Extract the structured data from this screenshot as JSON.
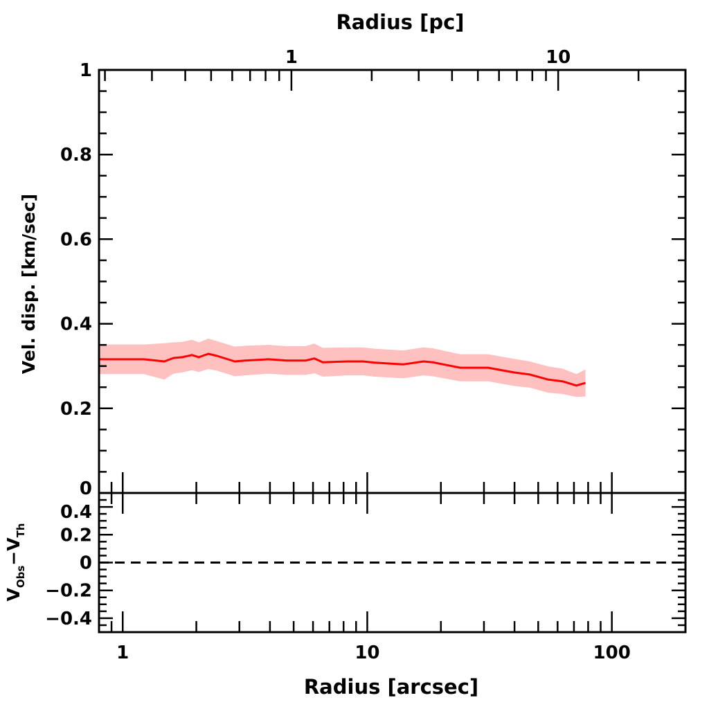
{
  "chart_data": [
    {
      "type": "line",
      "panel": "main",
      "xlabel": "Radius [arcsec]",
      "ylabel": "Vel. disp. [km/sec]",
      "top_xlabel": "Radius [pc]",
      "xscale": "log",
      "xlim": [
        0.8,
        200
      ],
      "ylim": [
        0,
        1
      ],
      "top_xlim": [
        0.19,
        30
      ],
      "top_xticks": [
        1,
        10
      ],
      "top_xtick_labels": [
        "1",
        "10"
      ],
      "yticks": [
        0,
        0.2,
        0.4,
        0.6,
        0.8,
        1
      ],
      "ytick_labels": [
        "0",
        "0.2",
        "0.4",
        "0.6",
        "0.8",
        "1"
      ],
      "grid": false,
      "line_color": "#ff0000",
      "band_color": "#ffc0c0",
      "x": [
        0.8,
        1.22,
        1.48,
        1.61,
        1.75,
        1.92,
        2.05,
        2.24,
        2.43,
        2.87,
        3.16,
        3.95,
        4.68,
        5.59,
        6.08,
        6.58,
        8.27,
        9.61,
        10.7,
        14.0,
        17.0,
        18.5,
        24.0,
        31.2,
        39.8,
        46.2,
        55.1,
        62.8,
        71.6,
        78.0
      ],
      "y": [
        0.316,
        0.316,
        0.311,
        0.319,
        0.321,
        0.326,
        0.321,
        0.329,
        0.324,
        0.311,
        0.313,
        0.316,
        0.313,
        0.313,
        0.318,
        0.309,
        0.311,
        0.311,
        0.308,
        0.304,
        0.311,
        0.309,
        0.296,
        0.296,
        0.285,
        0.28,
        0.268,
        0.264,
        0.254,
        0.26
      ],
      "y_err": [
        0.035,
        0.035,
        0.043,
        0.037,
        0.036,
        0.036,
        0.035,
        0.036,
        0.035,
        0.035,
        0.035,
        0.034,
        0.034,
        0.034,
        0.035,
        0.034,
        0.033,
        0.033,
        0.033,
        0.033,
        0.033,
        0.033,
        0.032,
        0.032,
        0.032,
        0.031,
        0.031,
        0.03,
        0.027,
        0.032
      ]
    },
    {
      "type": "line",
      "panel": "residual",
      "xlabel": "Radius [arcsec]",
      "ylabel_main": "V",
      "ylabel_sub1": "Obs",
      "ylabel_mid": "−V",
      "ylabel_sub2": "Th",
      "xscale": "log",
      "xlim": [
        0.8,
        200
      ],
      "ylim": [
        -0.5,
        0.5
      ],
      "xticks": [
        1,
        10,
        100
      ],
      "xtick_labels": [
        "1",
        "10",
        "100"
      ],
      "yticks": [
        0.4,
        0.2,
        0,
        -0.2,
        -0.4
      ],
      "ytick_labels": [
        "0.4",
        "0.2",
        "0",
        "−0.2",
        "−0.4"
      ],
      "reference_line": {
        "y": 0,
        "style": "dashed"
      }
    }
  ]
}
